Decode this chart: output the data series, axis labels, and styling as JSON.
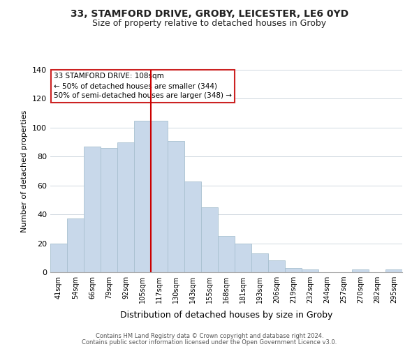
{
  "title": "33, STAMFORD DRIVE, GROBY, LEICESTER, LE6 0YD",
  "subtitle": "Size of property relative to detached houses in Groby",
  "xlabel": "Distribution of detached houses by size in Groby",
  "ylabel": "Number of detached properties",
  "categories": [
    "41sqm",
    "54sqm",
    "66sqm",
    "79sqm",
    "92sqm",
    "105sqm",
    "117sqm",
    "130sqm",
    "143sqm",
    "155sqm",
    "168sqm",
    "181sqm",
    "193sqm",
    "206sqm",
    "219sqm",
    "232sqm",
    "244sqm",
    "257sqm",
    "270sqm",
    "282sqm",
    "295sqm"
  ],
  "values": [
    20,
    37,
    87,
    86,
    90,
    105,
    105,
    91,
    63,
    45,
    25,
    20,
    13,
    8,
    3,
    2,
    0,
    0,
    2,
    0,
    2
  ],
  "bar_color": "#c8d8ea",
  "bar_edge_color": "#a8c0d0",
  "vline_color": "#cc0000",
  "ylim": [
    0,
    140
  ],
  "yticks": [
    0,
    20,
    40,
    60,
    80,
    100,
    120,
    140
  ],
  "annotation_title": "33 STAMFORD DRIVE: 108sqm",
  "annotation_line1": "← 50% of detached houses are smaller (344)",
  "annotation_line2": "50% of semi-detached houses are larger (348) →",
  "annotation_box_color": "#ffffff",
  "annotation_box_edge": "#cc2222",
  "footer1": "Contains HM Land Registry data © Crown copyright and database right 2024.",
  "footer2": "Contains public sector information licensed under the Open Government Licence v3.0.",
  "title_fontsize": 10,
  "subtitle_fontsize": 9,
  "tick_fontsize": 7,
  "ylabel_fontsize": 8,
  "xlabel_fontsize": 9,
  "annot_fontsize": 7.5,
  "footer_fontsize": 6
}
